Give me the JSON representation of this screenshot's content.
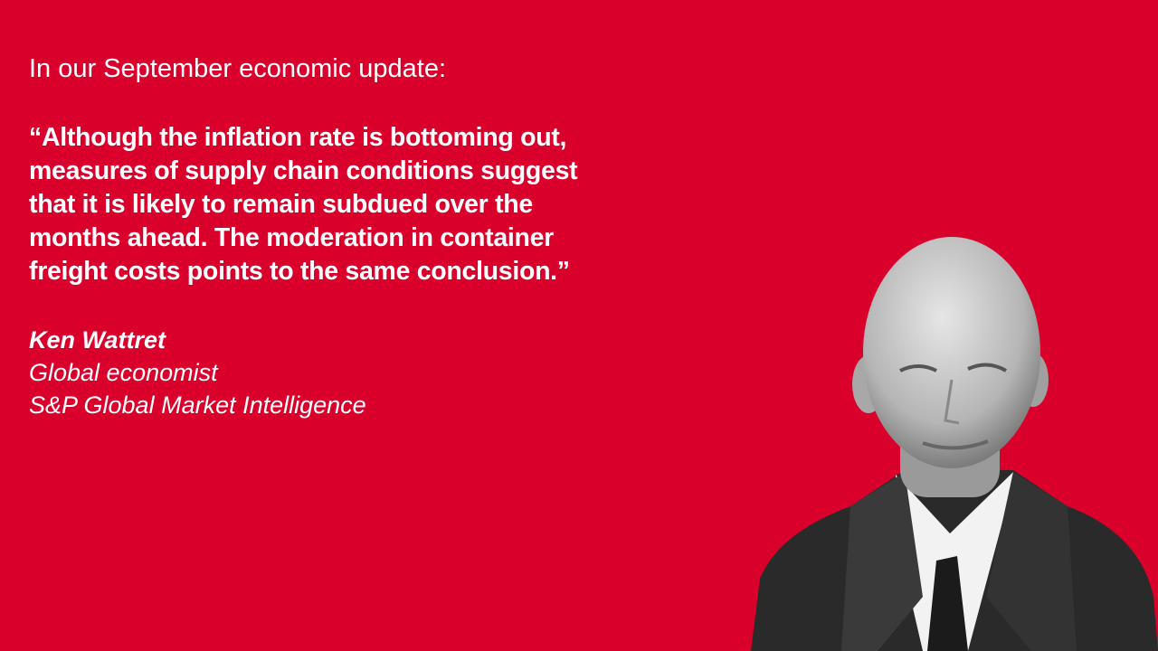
{
  "intro": "In our September economic update:",
  "quote": [
    "“Although the inflation rate is bottoming out,",
    "measures of supply chain conditions suggest",
    "that it is likely to remain subdued over the",
    "months ahead. The moderation in container",
    "freight costs points to the same conclusion.”"
  ],
  "author": {
    "name": "Ken Wattret",
    "role": "Global economist",
    "company": "S&P Global Market Intelligence"
  }
}
